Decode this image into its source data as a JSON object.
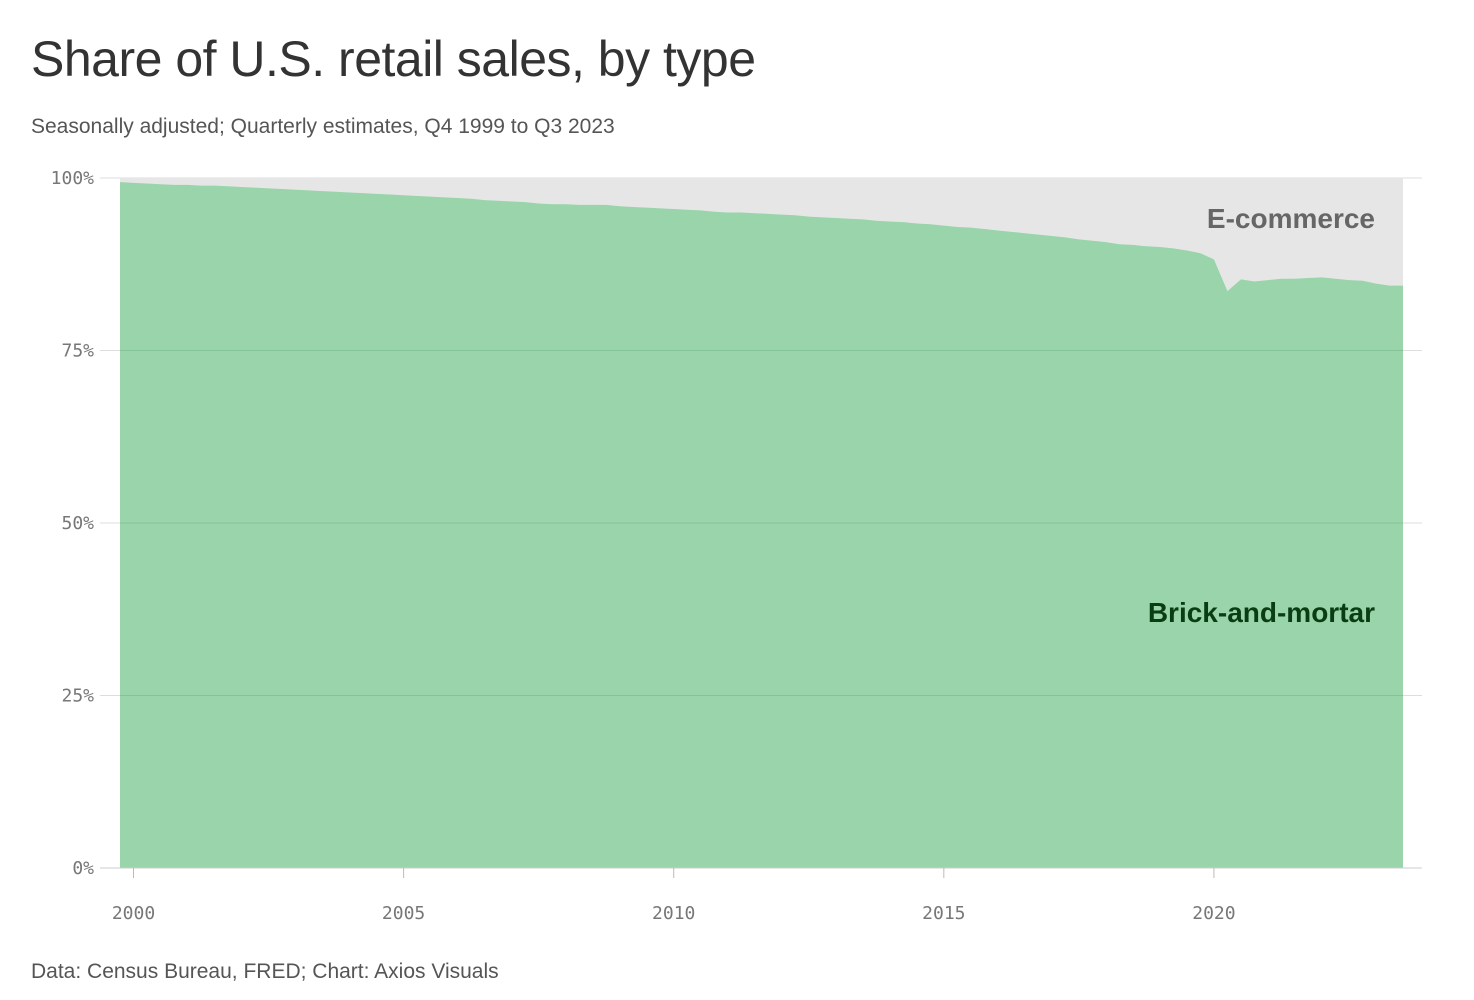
{
  "title": "Share of U.S. retail sales, by type",
  "subtitle": "Seasonally adjusted; Quarterly estimates, Q4 1999 to Q3 2023",
  "source": "Data: Census Bureau, FRED; Chart: Axios Visuals",
  "colors": {
    "brick_and_mortar": "#99d4ab",
    "ecommerce": "#e6e6e6",
    "brick_label": "#0b3d12",
    "ecommerce_label": "#666666",
    "grid": "#dddddd"
  },
  "chart_data": {
    "type": "area",
    "stacked": true,
    "normalized": true,
    "title": "Share of U.S. retail sales, by type",
    "subtitle": "Seasonally adjusted; Quarterly estimates, Q4 1999 to Q3 2023",
    "xlabel": "",
    "ylabel": "",
    "x_range": [
      1999.75,
      2023.5
    ],
    "y_range": [
      0,
      100
    ],
    "y_ticks": [
      "0%",
      "25%",
      "50%",
      "75%",
      "100%"
    ],
    "x_ticks": [
      "2000",
      "2005",
      "2010",
      "2015",
      "2020"
    ],
    "grid": true,
    "series_labels": {
      "ecommerce": "E-commerce",
      "brick": "Brick-and-mortar"
    },
    "brick_and_mortar_share": [
      [
        "1999 Q4",
        99.4
      ],
      [
        "2000 Q1",
        99.3
      ],
      [
        "2000 Q2",
        99.2
      ],
      [
        "2000 Q3",
        99.1
      ],
      [
        "2000 Q4",
        99.0
      ],
      [
        "2001 Q1",
        99.0
      ],
      [
        "2001 Q2",
        98.9
      ],
      [
        "2001 Q3",
        98.9
      ],
      [
        "2001 Q4",
        98.8
      ],
      [
        "2002 Q1",
        98.7
      ],
      [
        "2002 Q2",
        98.6
      ],
      [
        "2002 Q3",
        98.5
      ],
      [
        "2002 Q4",
        98.4
      ],
      [
        "2003 Q1",
        98.3
      ],
      [
        "2003 Q2",
        98.2
      ],
      [
        "2003 Q3",
        98.1
      ],
      [
        "2003 Q4",
        98.0
      ],
      [
        "2004 Q1",
        97.9
      ],
      [
        "2004 Q2",
        97.8
      ],
      [
        "2004 Q3",
        97.7
      ],
      [
        "2004 Q4",
        97.6
      ],
      [
        "2005 Q1",
        97.5
      ],
      [
        "2005 Q2",
        97.4
      ],
      [
        "2005 Q3",
        97.3
      ],
      [
        "2005 Q4",
        97.2
      ],
      [
        "2006 Q1",
        97.1
      ],
      [
        "2006 Q2",
        97.0
      ],
      [
        "2006 Q3",
        96.8
      ],
      [
        "2006 Q4",
        96.7
      ],
      [
        "2007 Q1",
        96.6
      ],
      [
        "2007 Q2",
        96.5
      ],
      [
        "2007 Q3",
        96.3
      ],
      [
        "2007 Q4",
        96.2
      ],
      [
        "2008 Q1",
        96.2
      ],
      [
        "2008 Q2",
        96.1
      ],
      [
        "2008 Q3",
        96.1
      ],
      [
        "2008 Q4",
        96.1
      ],
      [
        "2009 Q1",
        95.9
      ],
      [
        "2009 Q2",
        95.8
      ],
      [
        "2009 Q3",
        95.7
      ],
      [
        "2009 Q4",
        95.6
      ],
      [
        "2010 Q1",
        95.5
      ],
      [
        "2010 Q2",
        95.4
      ],
      [
        "2010 Q3",
        95.3
      ],
      [
        "2010 Q4",
        95.1
      ],
      [
        "2011 Q1",
        95.0
      ],
      [
        "2011 Q2",
        95.0
      ],
      [
        "2011 Q3",
        94.9
      ],
      [
        "2011 Q4",
        94.8
      ],
      [
        "2012 Q1",
        94.7
      ],
      [
        "2012 Q2",
        94.6
      ],
      [
        "2012 Q3",
        94.4
      ],
      [
        "2012 Q4",
        94.3
      ],
      [
        "2013 Q1",
        94.2
      ],
      [
        "2013 Q2",
        94.1
      ],
      [
        "2013 Q3",
        94.0
      ],
      [
        "2013 Q4",
        93.8
      ],
      [
        "2014 Q1",
        93.7
      ],
      [
        "2014 Q2",
        93.6
      ],
      [
        "2014 Q3",
        93.4
      ],
      [
        "2014 Q4",
        93.3
      ],
      [
        "2015 Q1",
        93.1
      ],
      [
        "2015 Q2",
        92.9
      ],
      [
        "2015 Q3",
        92.8
      ],
      [
        "2015 Q4",
        92.6
      ],
      [
        "2016 Q1",
        92.4
      ],
      [
        "2016 Q2",
        92.2
      ],
      [
        "2016 Q3",
        92.0
      ],
      [
        "2016 Q4",
        91.8
      ],
      [
        "2017 Q1",
        91.6
      ],
      [
        "2017 Q2",
        91.4
      ],
      [
        "2017 Q3",
        91.1
      ],
      [
        "2017 Q4",
        90.9
      ],
      [
        "2018 Q1",
        90.7
      ],
      [
        "2018 Q2",
        90.4
      ],
      [
        "2018 Q3",
        90.3
      ],
      [
        "2018 Q4",
        90.1
      ],
      [
        "2019 Q1",
        90.0
      ],
      [
        "2019 Q2",
        89.8
      ],
      [
        "2019 Q3",
        89.5
      ],
      [
        "2019 Q4",
        89.1
      ],
      [
        "2020 Q1",
        88.2
      ],
      [
        "2020 Q2",
        83.6
      ],
      [
        "2020 Q3",
        85.3
      ],
      [
        "2020 Q4",
        85.0
      ],
      [
        "2021 Q1",
        85.2
      ],
      [
        "2021 Q2",
        85.4
      ],
      [
        "2021 Q3",
        85.4
      ],
      [
        "2021 Q4",
        85.5
      ],
      [
        "2022 Q1",
        85.6
      ],
      [
        "2022 Q2",
        85.4
      ],
      [
        "2022 Q3",
        85.2
      ],
      [
        "2022 Q4",
        85.1
      ],
      [
        "2023 Q1",
        84.7
      ],
      [
        "2023 Q2",
        84.4
      ],
      [
        "2023 Q3",
        84.4
      ]
    ]
  }
}
